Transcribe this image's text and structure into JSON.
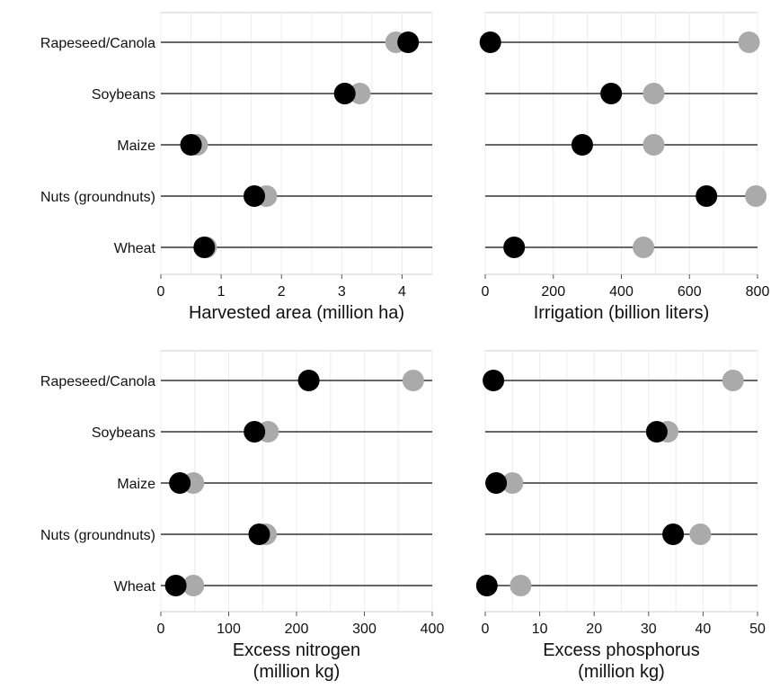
{
  "chart_data": [
    {
      "type": "dot",
      "categories": [
        "Rapeseed/Canola",
        "Soybeans",
        "Maize",
        "Nuts (groundnuts)",
        "Wheat"
      ],
      "xlabel": [
        "Harvested area (million ha)"
      ],
      "xlim": [
        0,
        4.5
      ],
      "xticks": [
        0,
        1,
        2,
        3,
        4
      ],
      "grid": true,
      "series": [
        {
          "color": "#aaaaaa",
          "values": [
            3.9,
            3.3,
            0.6,
            1.75,
            0.75
          ]
        },
        {
          "color": "#000000",
          "values": [
            4.1,
            3.05,
            0.5,
            1.55,
            0.72
          ]
        }
      ]
    },
    {
      "type": "dot",
      "categories": [
        "Rapeseed/Canola",
        "Soybeans",
        "Maize",
        "Nuts (groundnuts)",
        "Wheat"
      ],
      "xlabel": [
        "Irrigation (billion liters)"
      ],
      "xlim": [
        0,
        800
      ],
      "xticks": [
        0,
        200,
        400,
        600,
        800
      ],
      "grid": true,
      "series": [
        {
          "color": "#aaaaaa",
          "values": [
            775,
            495,
            495,
            795,
            465
          ]
        },
        {
          "color": "#000000",
          "values": [
            15,
            370,
            285,
            650,
            85
          ]
        }
      ]
    },
    {
      "type": "dot",
      "categories": [
        "Rapeseed/Canola",
        "Soybeans",
        "Maize",
        "Nuts (groundnuts)",
        "Wheat"
      ],
      "xlabel": [
        "Excess nitrogen",
        "(million kg)"
      ],
      "xlim": [
        0,
        400
      ],
      "xticks": [
        0,
        100,
        200,
        300,
        400
      ],
      "grid": true,
      "series": [
        {
          "color": "#aaaaaa",
          "values": [
            372,
            158,
            48,
            155,
            48
          ]
        },
        {
          "color": "#000000",
          "values": [
            218,
            138,
            28,
            145,
            22
          ]
        }
      ]
    },
    {
      "type": "dot",
      "categories": [
        "Rapeseed/Canola",
        "Soybeans",
        "Maize",
        "Nuts (groundnuts)",
        "Wheat"
      ],
      "xlabel": [
        "Excess phosphorus",
        "(million kg)"
      ],
      "xlim": [
        0,
        50
      ],
      "xticks": [
        0,
        10,
        20,
        30,
        40,
        50
      ],
      "grid": true,
      "series": [
        {
          "color": "#aaaaaa",
          "values": [
            45.5,
            33.5,
            5,
            39.5,
            6.5
          ]
        },
        {
          "color": "#000000",
          "values": [
            1.5,
            31.5,
            2,
            34.5,
            0.3
          ]
        }
      ]
    }
  ]
}
